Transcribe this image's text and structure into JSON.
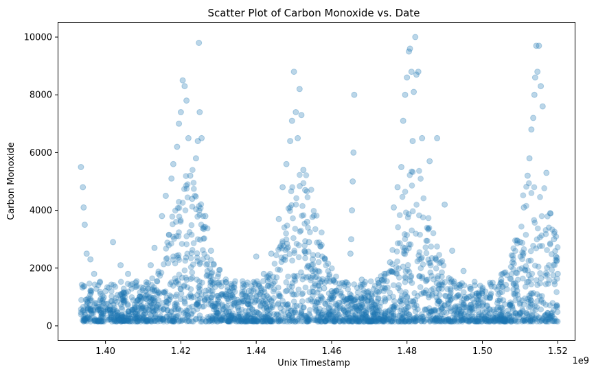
{
  "chart_data": {
    "type": "scatter",
    "title": "Scatter Plot of Carbon Monoxide vs. Date",
    "xlabel": "Unix Timestamp",
    "ylabel": "Carbon Monoxide",
    "x_offset_label": "1e9",
    "xlim": [
      1.3875,
      1.5245
    ],
    "ylim": [
      -500,
      10500
    ],
    "x_ticks": [
      1.4,
      1.42,
      1.44,
      1.46,
      1.48,
      1.5,
      1.52
    ],
    "x_tick_labels": [
      "1.40",
      "1.42",
      "1.44",
      "1.46",
      "1.48",
      "1.50",
      "1.52"
    ],
    "y_ticks": [
      0,
      2000,
      4000,
      6000,
      8000,
      10000
    ],
    "y_tick_labels": [
      "0",
      "2000",
      "4000",
      "6000",
      "8000",
      "10000"
    ],
    "grid": false,
    "marker_color": "#1f77b4",
    "marker_alpha": 0.3,
    "series": [
      {
        "name": "Carbon Monoxide",
        "x": [
          1.3935,
          1.394,
          1.3942,
          1.3945,
          1.395,
          1.396,
          1.397,
          1.3985,
          1.4,
          1.402,
          1.404,
          1.406,
          1.408,
          1.41,
          1.412,
          1.413,
          1.415,
          1.416,
          1.4175,
          1.418,
          1.419,
          1.4195,
          1.42,
          1.4205,
          1.421,
          1.4215,
          1.422,
          1.4225,
          1.423,
          1.424,
          1.4245,
          1.4248,
          1.425,
          1.4255,
          1.4265,
          1.428,
          1.43,
          1.432,
          1.435,
          1.438,
          1.44,
          1.442,
          1.444,
          1.446,
          1.447,
          1.448,
          1.449,
          1.4495,
          1.45,
          1.4505,
          1.451,
          1.4515,
          1.452,
          1.4525,
          1.453,
          1.4535,
          1.454,
          1.455,
          1.456,
          1.458,
          1.46,
          1.462,
          1.464,
          1.465,
          1.4652,
          1.4654,
          1.4656,
          1.4658,
          1.466,
          1.468,
          1.47,
          1.472,
          1.474,
          1.4755,
          1.4765,
          1.4775,
          1.4785,
          1.479,
          1.4795,
          1.48,
          1.4805,
          1.4808,
          1.4812,
          1.4815,
          1.4818,
          1.4822,
          1.4825,
          1.483,
          1.484,
          1.486,
          1.488,
          1.49,
          1.492,
          1.495,
          1.498,
          1.5,
          1.502,
          1.505,
          1.508,
          1.51,
          1.511,
          1.512,
          1.5125,
          1.513,
          1.5135,
          1.5138,
          1.514,
          1.5143,
          1.5146,
          1.515,
          1.5155,
          1.516,
          1.517,
          1.518,
          1.519,
          1.5195,
          1.52
        ],
        "y": [
          5500,
          4800,
          4100,
          3500,
          2500,
          2300,
          1800,
          1500,
          1200,
          2900,
          2100,
          1800,
          1500,
          1300,
          2100,
          2700,
          3800,
          4500,
          5100,
          5600,
          6200,
          7000,
          7400,
          8500,
          8300,
          7800,
          6500,
          5200,
          4400,
          5800,
          6400,
          9800,
          7400,
          6500,
          3800,
          2600,
          1500,
          1100,
          900,
          1200,
          2400,
          1800,
          2500,
          3700,
          4800,
          5600,
          6400,
          7100,
          8800,
          7400,
          6500,
          8200,
          7300,
          5400,
          4700,
          3600,
          2900,
          2300,
          1700,
          1300,
          1200,
          800,
          1500,
          2500,
          3000,
          4000,
          5000,
          6000,
          8000,
          1600,
          1000,
          1200,
          1800,
          2200,
          4100,
          4800,
          5500,
          7100,
          8000,
          8600,
          9500,
          9600,
          8800,
          6400,
          8100,
          10000,
          8700,
          8800,
          6500,
          5700,
          6500,
          4200,
          2600,
          1900,
          1400,
          1200,
          1000,
          1600,
          2200,
          2900,
          4100,
          5200,
          5800,
          6800,
          7200,
          8000,
          8600,
          9700,
          8800,
          9700,
          8300,
          7600,
          5300,
          3900,
          3000,
          2400,
          1800
        ]
      }
    ]
  }
}
